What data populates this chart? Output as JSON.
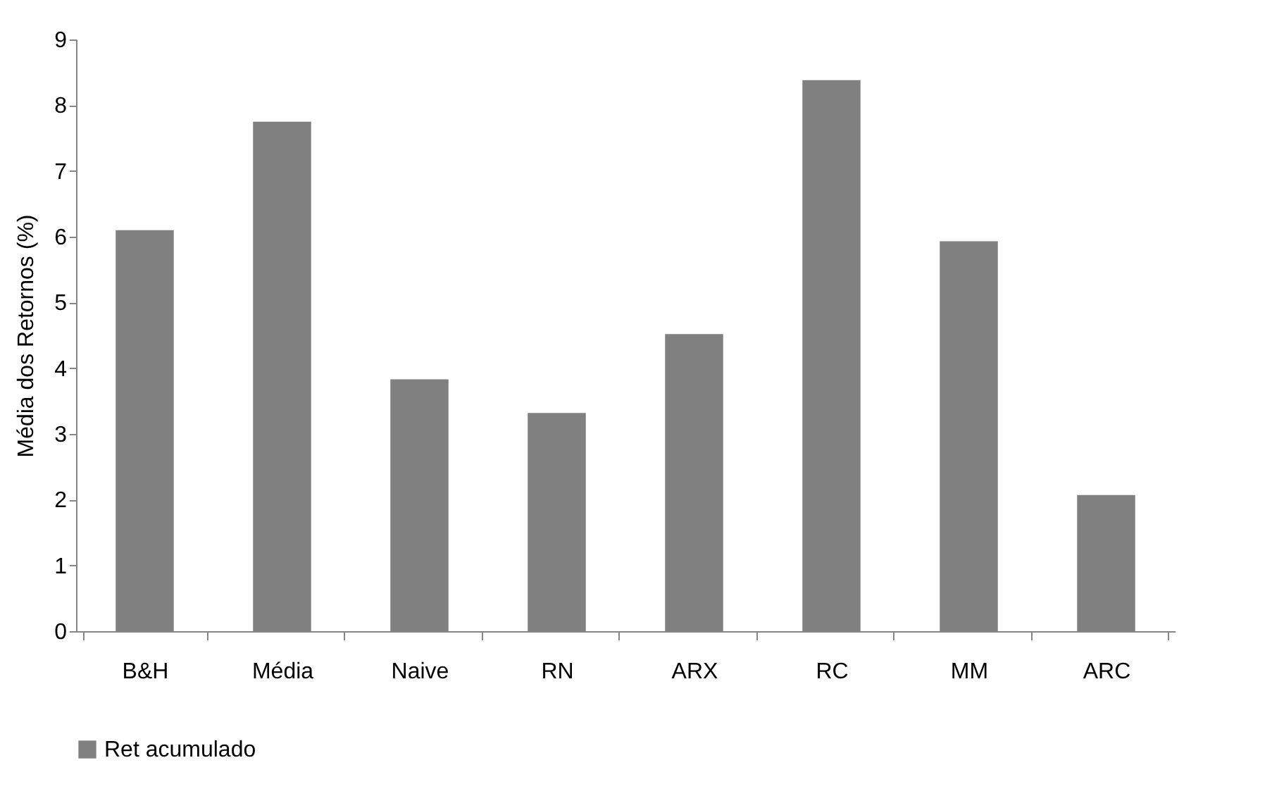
{
  "chart_data": {
    "type": "bar",
    "ylabel": "Média dos Retornos (%)",
    "categories": [
      "B&H",
      "Média",
      "Naive",
      "RN",
      "ARX",
      "RC",
      "MM",
      "ARC"
    ],
    "series": [
      {
        "name": "Ret acumulado",
        "color": "#808080",
        "values": [
          6.1,
          7.75,
          3.83,
          3.32,
          4.52,
          8.38,
          5.93,
          2.07
        ]
      }
    ],
    "ylim": [
      0,
      9
    ],
    "yticks": [
      0,
      1,
      2,
      3,
      4,
      5,
      6,
      7,
      8,
      9
    ],
    "grid": false,
    "legend": "bottom"
  }
}
